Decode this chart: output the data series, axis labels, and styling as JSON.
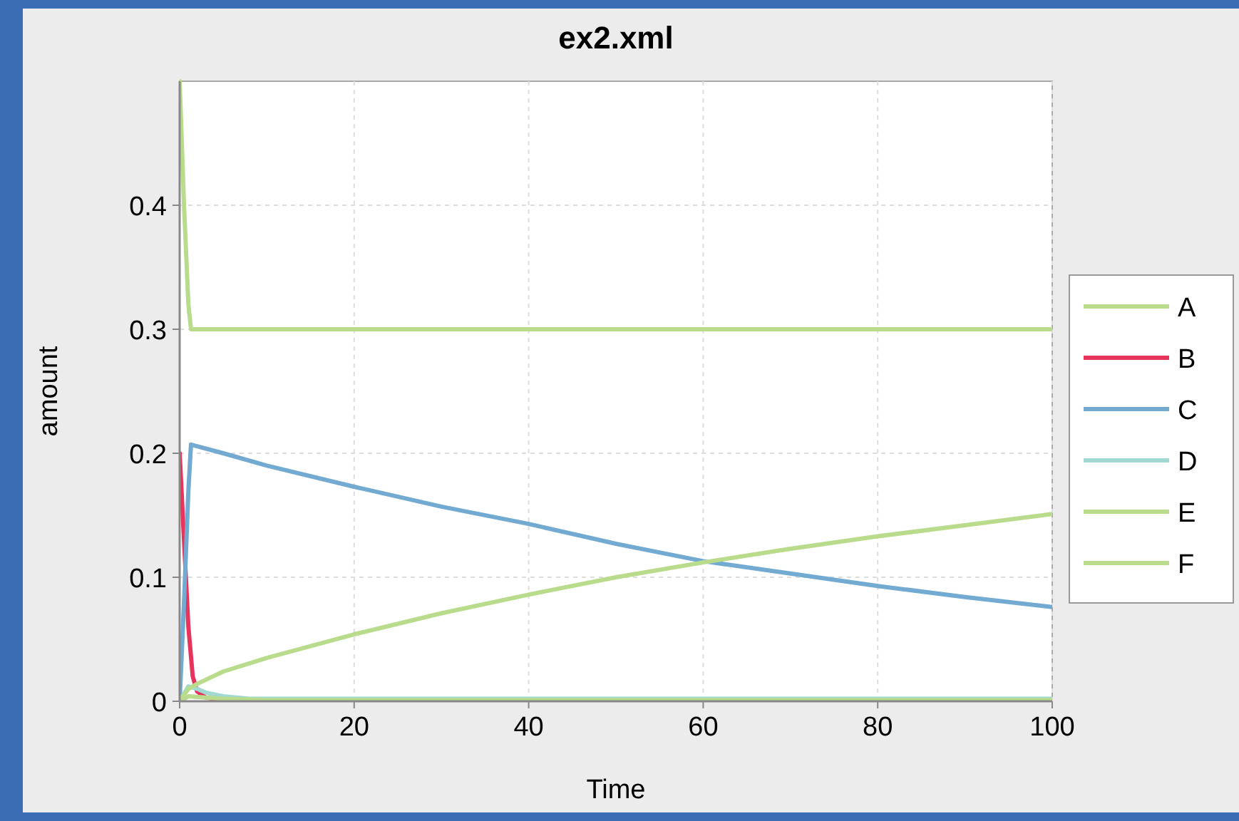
{
  "chart_data": {
    "type": "line",
    "title": "ex2.xml",
    "xlabel": "Time",
    "ylabel": "amount",
    "xlim": [
      0,
      100
    ],
    "ylim": [
      0,
      0.5
    ],
    "xticks": [
      0,
      20,
      40,
      60,
      80,
      100
    ],
    "yticks": [
      0,
      0.1,
      0.2,
      0.3,
      0.4
    ],
    "grid": true,
    "legend": "right",
    "marker": "none",
    "line_style": "solid",
    "series": [
      {
        "name": "A",
        "color": "#b9dc8c",
        "x": [
          0,
          0.5,
          1,
          1.3,
          2,
          10,
          20,
          40,
          60,
          80,
          100
        ],
        "values": [
          0.5,
          0.4,
          0.32,
          0.3,
          0.3,
          0.3,
          0.3,
          0.3,
          0.3,
          0.3,
          0.3
        ]
      },
      {
        "name": "B",
        "color": "#e8335c",
        "x": [
          0,
          0.5,
          1,
          1.5,
          2,
          3,
          5
        ],
        "values": [
          0.2,
          0.13,
          0.06,
          0.02,
          0.008,
          0.003,
          0.001
        ]
      },
      {
        "name": "C",
        "color": "#72aad2",
        "x": [
          0,
          0.5,
          1,
          1.3,
          5,
          10,
          20,
          30,
          40,
          50,
          60,
          70,
          80,
          90,
          100
        ],
        "values": [
          0,
          0.08,
          0.17,
          0.207,
          0.2,
          0.19,
          0.173,
          0.157,
          0.143,
          0.127,
          0.113,
          0.103,
          0.093,
          0.084,
          0.076
        ]
      },
      {
        "name": "D",
        "color": "#a2d8d2",
        "x": [
          0,
          1,
          2,
          3,
          5,
          8,
          10,
          20,
          100
        ],
        "values": [
          0,
          0.012,
          0.01,
          0.007,
          0.004,
          0.002,
          0.002,
          0.002,
          0.002
        ]
      },
      {
        "name": "E",
        "color": "#b9dc8c",
        "x": [
          0,
          1,
          2,
          5,
          10,
          20,
          30,
          40,
          50,
          60,
          70,
          80,
          90,
          100
        ],
        "values": [
          0,
          0.01,
          0.014,
          0.024,
          0.035,
          0.054,
          0.071,
          0.086,
          0.1,
          0.112,
          0.123,
          0.133,
          0.142,
          0.151
        ]
      },
      {
        "name": "F",
        "color": "#b9dc8c",
        "x": [
          0,
          1,
          3,
          5,
          10,
          100
        ],
        "values": [
          0,
          0.004,
          0.003,
          0.002,
          0.001,
          0.001
        ]
      }
    ]
  }
}
